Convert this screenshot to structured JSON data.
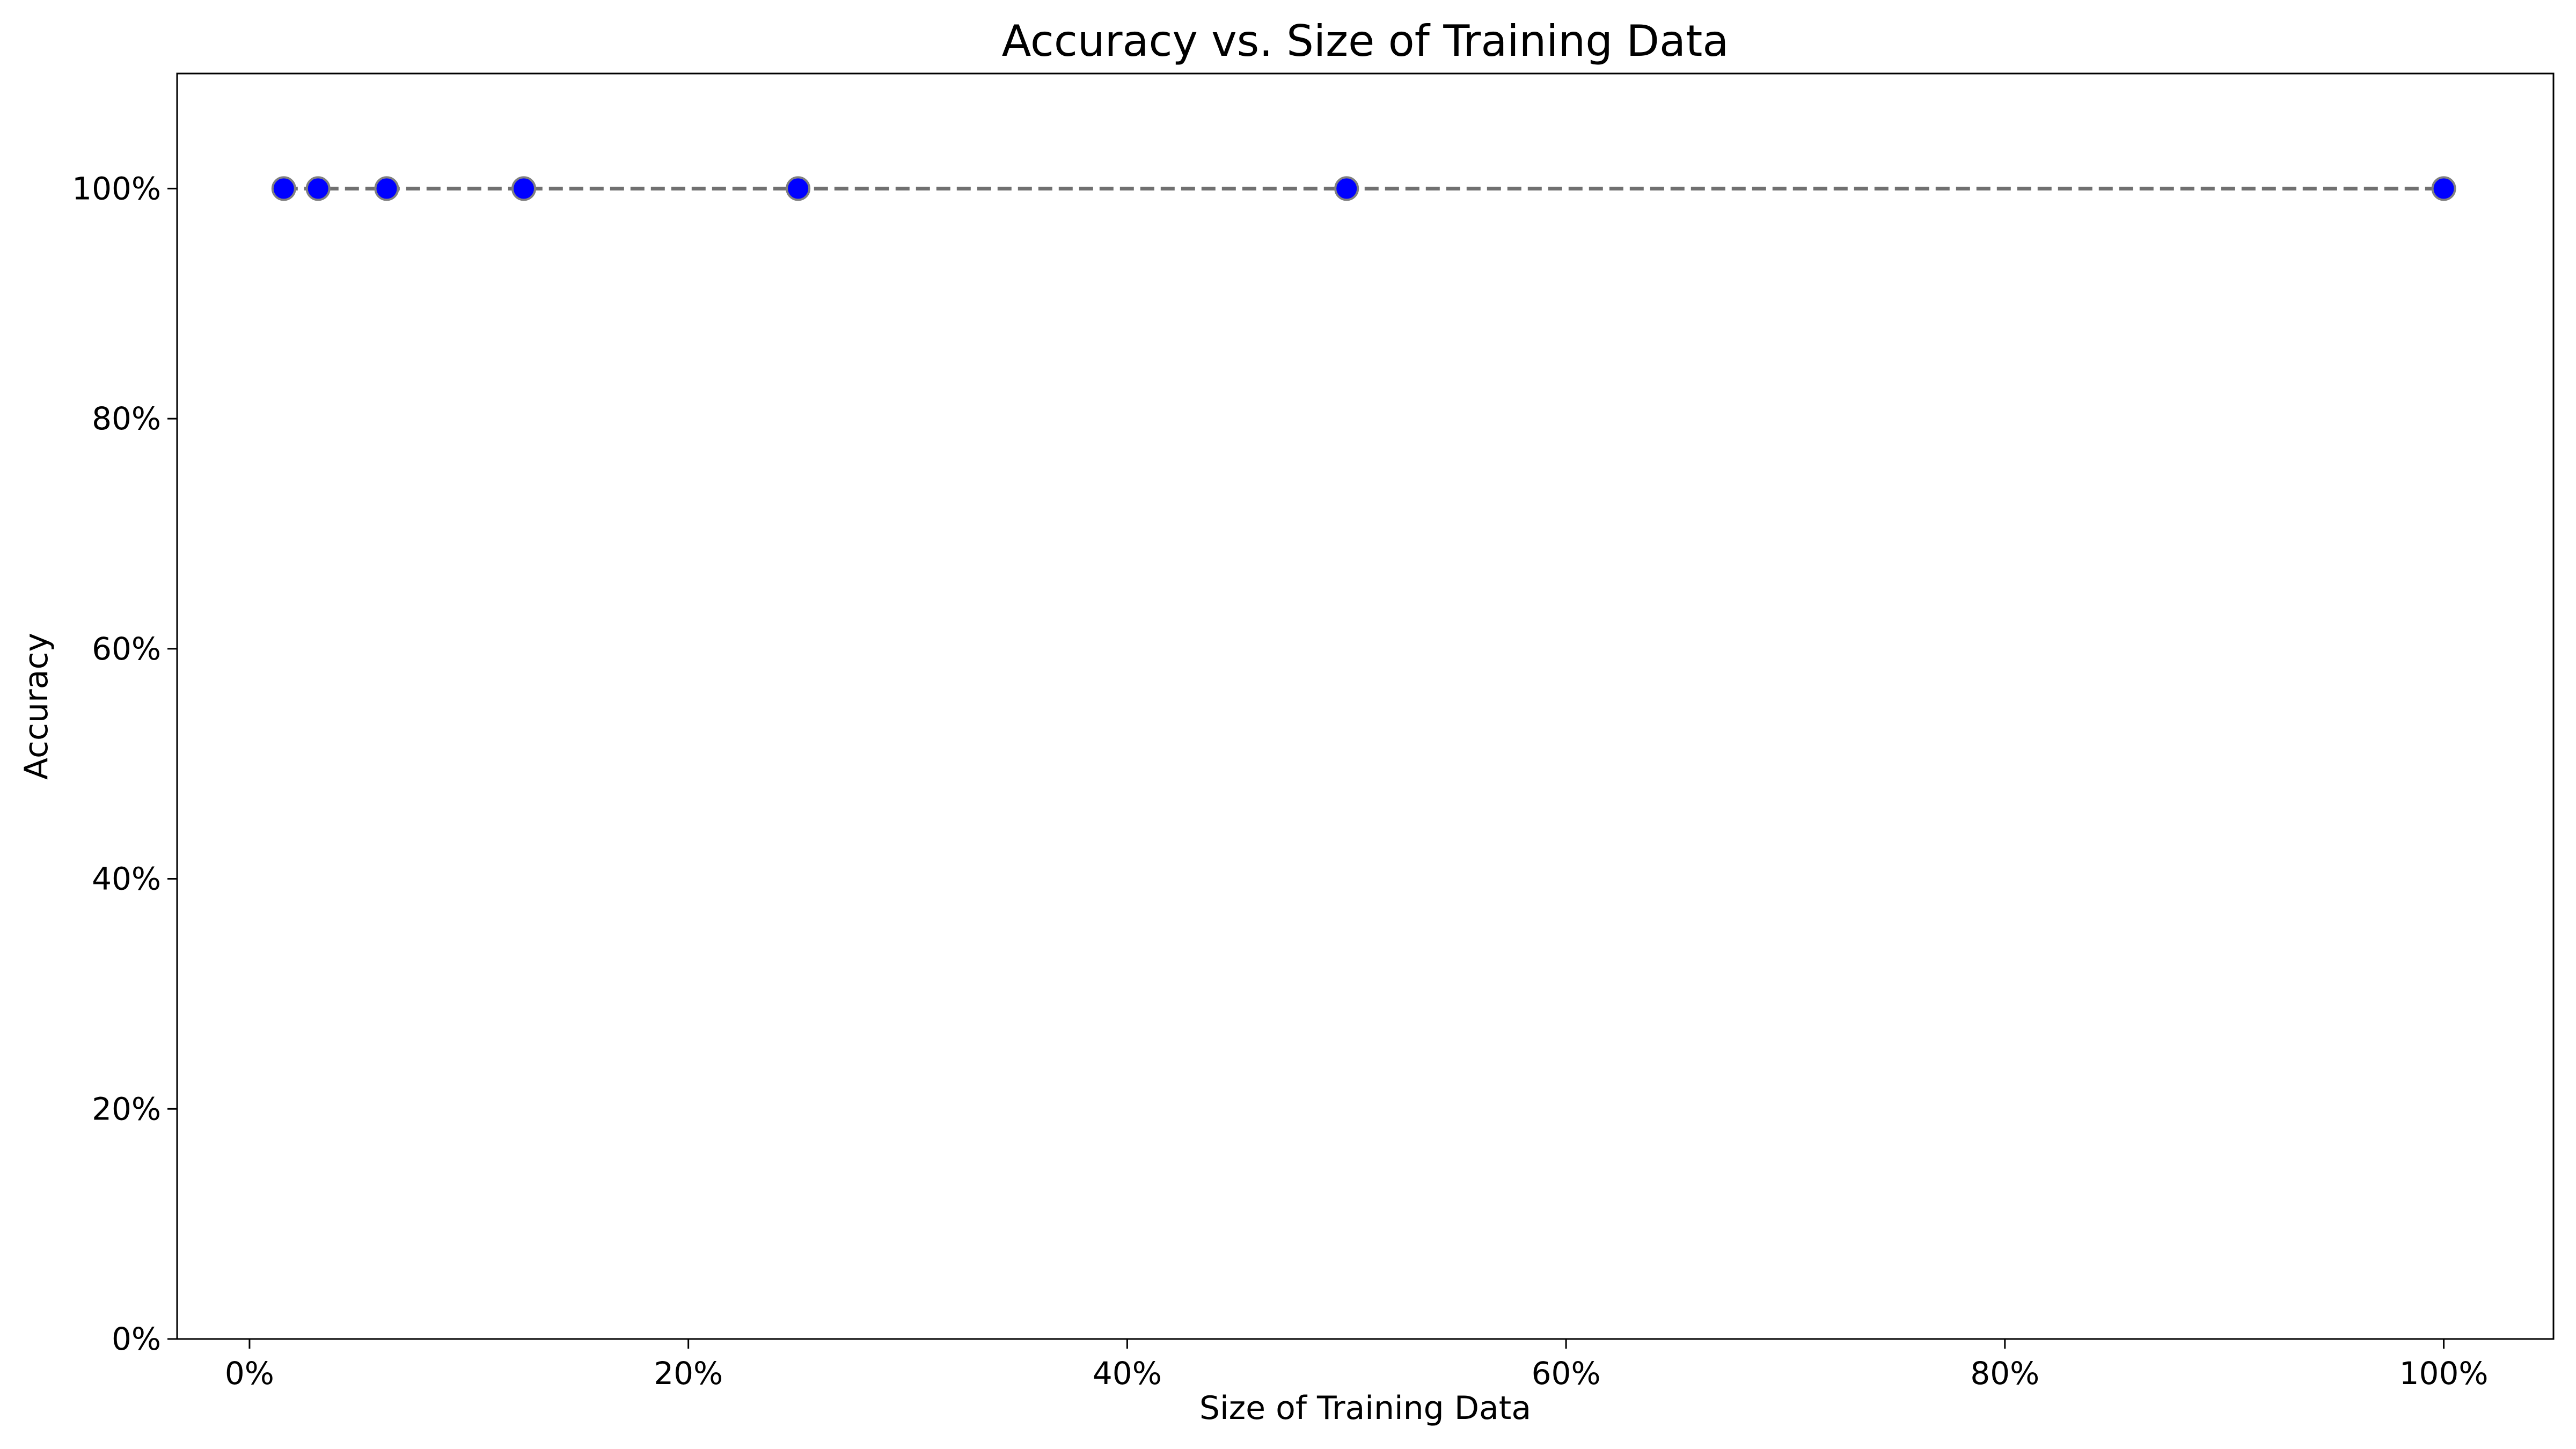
{
  "chart_data": {
    "type": "line",
    "title": "Accuracy vs. Size of Training Data",
    "xlabel": "Size of Training Data",
    "ylabel": "Accuracy",
    "xlim": [
      -0.033,
      1.05
    ],
    "ylim": [
      0,
      1.1
    ],
    "x_ticks": [
      0,
      0.2,
      0.4,
      0.6,
      0.8,
      1.0
    ],
    "x_tick_labels": [
      "0%",
      "20%",
      "40%",
      "60%",
      "80%",
      "100%"
    ],
    "y_ticks": [
      0,
      0.2,
      0.4,
      0.6,
      0.8,
      1.0
    ],
    "y_tick_labels": [
      "0%",
      "20%",
      "40%",
      "60%",
      "80%",
      "100%"
    ],
    "grid": false,
    "series": [
      {
        "x": [
          0.015625,
          0.03125,
          0.0625,
          0.125,
          0.25,
          0.5,
          1.0
        ],
        "y": [
          1.0,
          1.0,
          1.0,
          1.0,
          1.0,
          1.0,
          1.0
        ],
        "line_color": "#707070",
        "line_style": "dashed",
        "marker": "circle",
        "marker_fill": "#0000ff",
        "marker_edge": "#808080"
      }
    ]
  }
}
